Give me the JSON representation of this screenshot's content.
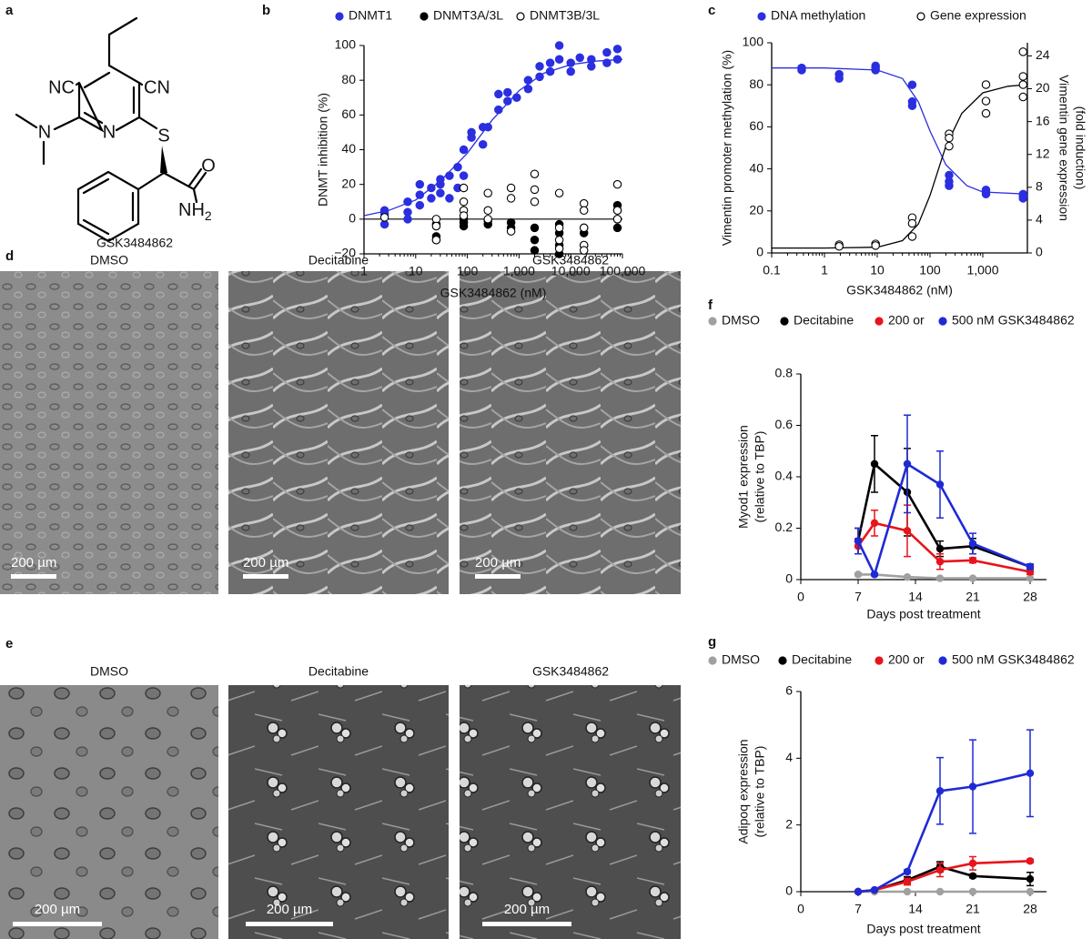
{
  "structure": {
    "label": "a",
    "atoms": [
      "NC",
      "CN",
      "N",
      "N",
      "S",
      "O",
      "NH",
      "2"
    ],
    "name": "GSK3484862"
  },
  "micrographs": [
    {
      "label": "d",
      "captions": [
        "DMSO",
        "Decitabine",
        "GSK3484862"
      ],
      "scale_bars": [
        "200 µm",
        "200 µm",
        "200 µm"
      ]
    },
    {
      "label": "e",
      "captions": [
        "DMSO",
        "Decitabine",
        "GSK3484862"
      ],
      "scale_bars": [
        "200 µm",
        "200 µm",
        "200 µm"
      ]
    }
  ],
  "chart_data": [
    {
      "type": "scatter",
      "label": "b",
      "xlabel": "GSK3484862 (nM)",
      "ylabel": "DNMT inhibition (%)",
      "xscale": "log",
      "xlim": [
        1,
        100000
      ],
      "xticks": [
        1,
        10,
        100,
        {
          "value": 1000,
          "label": "1,000"
        },
        {
          "value": 10000,
          "label": "10,000"
        },
        {
          "value": 100000,
          "label": "100,000"
        }
      ],
      "ylim": [
        -20,
        100
      ],
      "yticks": [
        {
          "value": -20,
          "label": "−20"
        },
        0,
        20,
        40,
        60,
        80,
        100
      ],
      "reference_line": 0,
      "series": [
        {
          "name": "DNMT1",
          "color": "#2b2fe0",
          "marker": "filled",
          "x": [
            2.5,
            2.5,
            2.5,
            7,
            7,
            7,
            12,
            12,
            12,
            20,
            20,
            30,
            30,
            30,
            45,
            45,
            65,
            65,
            85,
            85,
            120,
            120,
            200,
            200,
            250,
            400,
            400,
            600,
            600,
            900,
            1500,
            1500,
            2500,
            2500,
            4000,
            4000,
            6000,
            6000,
            10000,
            10000,
            15000,
            25000,
            25000,
            50000,
            50000,
            80000,
            80000
          ],
          "values": [
            5,
            3,
            -3,
            0,
            4,
            10,
            20,
            14,
            8,
            18,
            12,
            15,
            20,
            23,
            25,
            12,
            30,
            18,
            40,
            25,
            50,
            47,
            53,
            43,
            53,
            63,
            72,
            68,
            73,
            70,
            80,
            75,
            88,
            82,
            90,
            85,
            100,
            92,
            90,
            85,
            93,
            92,
            88,
            96,
            90,
            98,
            92
          ],
          "fit": {
            "x": [
              1,
              3,
              10,
              30,
              100,
              300,
              1000,
              3000,
              10000,
              30000,
              100000
            ],
            "values": [
              2,
              5,
              11,
              22,
              38,
              57,
              74,
              84,
              89,
              91,
              92
            ]
          }
        },
        {
          "name": "DNMT3A/3L",
          "color": "#000000",
          "marker": "filled",
          "x": [
            25,
            25,
            25,
            85,
            85,
            85,
            250,
            250,
            700,
            700,
            2000,
            2000,
            2000,
            6000,
            6000,
            6000,
            6000,
            18000,
            18000,
            18000,
            80000,
            80000,
            80000,
            80000
          ],
          "values": [
            -10,
            -12,
            -3,
            -4,
            0,
            -2,
            -1,
            -3,
            -5,
            -2,
            -12,
            -18,
            -5,
            -15,
            -20,
            -8,
            -3,
            -15,
            -5,
            -8,
            8,
            5,
            0,
            -5
          ]
        },
        {
          "name": "DNMT3B/3L",
          "color": "#000000",
          "marker": "open",
          "x": [
            2.5,
            25,
            25,
            25,
            85,
            85,
            85,
            85,
            250,
            250,
            250,
            700,
            700,
            700,
            2000,
            2000,
            2000,
            6000,
            6000,
            6000,
            6000,
            18000,
            18000,
            18000,
            18000,
            18000,
            80000,
            80000,
            80000
          ],
          "values": [
            1,
            0,
            -4,
            -12,
            18,
            10,
            5,
            2,
            15,
            5,
            0,
            18,
            12,
            -7,
            26,
            17,
            10,
            15,
            -5,
            -12,
            -17,
            9,
            5,
            -5,
            -15,
            -18,
            20,
            5,
            0
          ]
        }
      ]
    },
    {
      "type": "scatter",
      "label": "c",
      "xlabel": "GSK3484862 (nM)",
      "ylabel": "Vimentin promoter methylation (%)",
      "y2label": [
        "Vimentin gene expression",
        "(fold induction)"
      ],
      "xscale": "log",
      "xlim": [
        0.1,
        7000
      ],
      "xticks": [
        0.1,
        1,
        10,
        100,
        {
          "value": 1000,
          "label": "1,000"
        }
      ],
      "ylim": [
        0,
        100
      ],
      "yticks": [
        0,
        20,
        40,
        60,
        80,
        100
      ],
      "y2lim": [
        0,
        25.6
      ],
      "y2ticks": [
        0,
        4,
        8,
        12,
        16,
        20,
        24
      ],
      "series": [
        {
          "name": "DNA methylation",
          "color": "#2b2fe0",
          "marker": "filled",
          "x": [
            0.37,
            0.37,
            0.37,
            1.9,
            1.9,
            9.3,
            9.3,
            9.3,
            46,
            46,
            46,
            230,
            230,
            230,
            1150,
            1150,
            1150,
            5800,
            5800,
            5800
          ],
          "values": [
            88,
            87,
            88,
            85,
            83,
            89,
            87,
            88,
            80,
            72,
            70,
            37,
            34,
            32,
            30,
            28,
            29,
            28,
            27,
            26
          ],
          "fit": {
            "x": [
              0.1,
              1,
              10,
              30,
              60,
              100,
              200,
              500,
              1000,
              7000
            ],
            "values": [
              88,
              88,
              87,
              83,
              72,
              58,
              42,
              32,
              29,
              28
            ]
          }
        },
        {
          "name": "Gene expression",
          "color": "#000000",
          "marker": "open",
          "axis": "y2",
          "x": [
            1.9,
            1.9,
            9.3,
            9.3,
            46,
            46,
            46,
            230,
            230,
            230,
            1150,
            1150,
            1150,
            5800,
            5800,
            5800,
            5800
          ],
          "values": [
            1.0,
            0.8,
            1.1,
            0.9,
            4.3,
            3.6,
            2.0,
            14.5,
            14,
            13,
            20.5,
            18.5,
            17,
            24.5,
            21.5,
            20.5,
            19
          ],
          "fit": {
            "x": [
              0.1,
              1,
              10,
              30,
              60,
              100,
              200,
              400,
              1000,
              3000,
              7000
            ],
            "values": [
              0.6,
              0.6,
              0.7,
              1.5,
              3.5,
              7,
              13,
              17,
              19.5,
              20.3,
              20.5
            ]
          }
        }
      ]
    },
    {
      "type": "line",
      "label": "f",
      "xlabel": "Days post treatment",
      "ylabel": [
        "Myod1 expression",
        "(relative to TBP)"
      ],
      "xlim": [
        0,
        30
      ],
      "xticks": [
        0,
        7,
        14,
        21,
        28
      ],
      "ylim": [
        0,
        0.8
      ],
      "yticks": [
        0,
        0.2,
        0.4,
        0.6,
        0.8
      ],
      "series": [
        {
          "name": "DMSO",
          "color": "#a0a0a0",
          "x": [
            7,
            9,
            13,
            17,
            21,
            28
          ],
          "values": [
            0.02,
            0.02,
            0.01,
            0.005,
            0.005,
            0.005
          ],
          "errors": [
            0.005,
            0.005,
            0.003,
            0.002,
            0.002,
            0.002
          ]
        },
        {
          "name": "Decitabine",
          "color": "#000000",
          "x": [
            7,
            9,
            13,
            17,
            21,
            28
          ],
          "values": [
            0.15,
            0.45,
            0.34,
            0.12,
            0.13,
            0.05
          ],
          "errors": [
            0.05,
            0.11,
            0.17,
            0.03,
            0.03,
            0.01
          ]
        },
        {
          "name": "200 or",
          "color": "#e8141b",
          "x": [
            7,
            9,
            13,
            17,
            21,
            28
          ],
          "values": [
            0.13,
            0.22,
            0.19,
            0.07,
            0.075,
            0.03
          ],
          "errors": [
            0.03,
            0.05,
            0.1,
            0.03,
            0.01,
            0.01
          ]
        },
        {
          "name": "500  nM  GSK3484862",
          "color": "#1f2ad6",
          "x": [
            7,
            9,
            13,
            17,
            21,
            28
          ],
          "values": [
            0.15,
            0.02,
            0.45,
            0.37,
            0.14,
            0.05
          ],
          "errors": [
            0.05,
            0.005,
            0.19,
            0.13,
            0.04,
            0.01
          ]
        }
      ]
    },
    {
      "type": "line",
      "label": "g",
      "xlabel": "Days post treatment",
      "ylabel": [
        "Adipoq expression",
        "(relative to TBP)"
      ],
      "xlim": [
        0,
        30
      ],
      "xticks": [
        0,
        7,
        14,
        21,
        28
      ],
      "ylim": [
        0,
        6
      ],
      "yticks": [
        0,
        2,
        4,
        6
      ],
      "series": [
        {
          "name": "DMSO",
          "color": "#a0a0a0",
          "x": [
            7,
            9,
            13,
            17,
            21,
            28
          ],
          "values": [
            0,
            0,
            0,
            0,
            0,
            0
          ],
          "errors": [
            0.02,
            0.02,
            0.02,
            0.02,
            0.02,
            0.02
          ]
        },
        {
          "name": "Decitabine",
          "color": "#000000",
          "x": [
            7,
            9,
            13,
            17,
            21,
            28
          ],
          "values": [
            0,
            0.05,
            0.35,
            0.75,
            0.47,
            0.38
          ],
          "errors": [
            0.02,
            0.02,
            0.1,
            0.15,
            0.05,
            0.2
          ]
        },
        {
          "name": "200 or",
          "color": "#e8141b",
          "x": [
            7,
            9,
            13,
            17,
            21,
            28
          ],
          "values": [
            0,
            0.05,
            0.3,
            0.65,
            0.85,
            0.92
          ],
          "errors": [
            0.02,
            0.02,
            0.1,
            0.2,
            0.2,
            0.05
          ]
        },
        {
          "name": "500 nM GSK3484862",
          "color": "#1f2ad6",
          "x": [
            7,
            9,
            13,
            17,
            21,
            28
          ],
          "values": [
            0,
            0.05,
            0.6,
            3.02,
            3.15,
            3.55
          ],
          "errors": [
            0.02,
            0.02,
            0.05,
            1.0,
            1.4,
            1.3
          ]
        }
      ]
    }
  ]
}
